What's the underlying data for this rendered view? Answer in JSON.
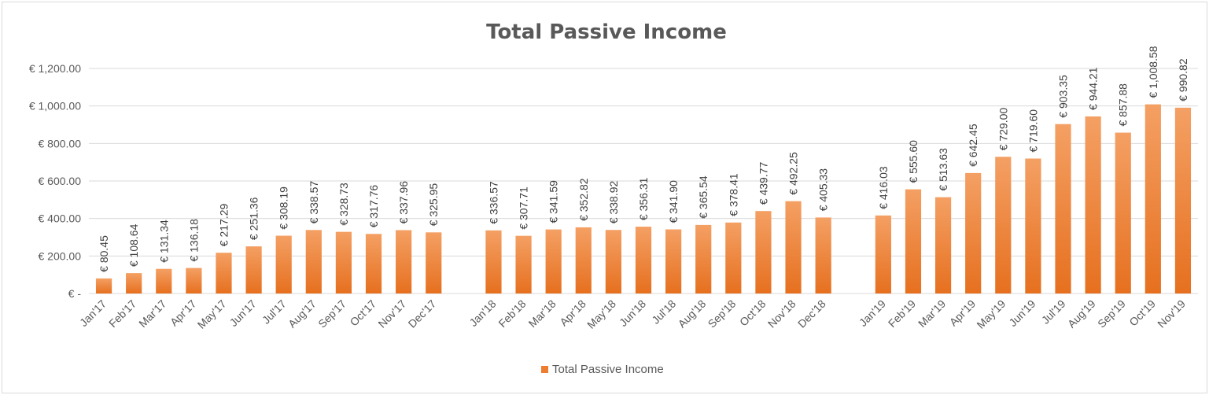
{
  "chart_data": {
    "type": "bar",
    "title": "Total Passive Income",
    "xlabel": "",
    "ylabel": "",
    "ylim": [
      0,
      1200
    ],
    "y_ticks": [
      {
        "value": 1200,
        "label": "€ 1,200.00"
      },
      {
        "value": 1000,
        "label": "€ 1,000.00"
      },
      {
        "value": 800,
        "label": "€ 800.00"
      },
      {
        "value": 600,
        "label": "€ 600.00"
      },
      {
        "value": 400,
        "label": "€ 400.00"
      },
      {
        "value": 200,
        "label": "€ 200.00"
      },
      {
        "value": 0,
        "label": "€ -"
      }
    ],
    "grid": true,
    "legend_position": "bottom",
    "color": "#ED7D31",
    "series": [
      {
        "name": "Total Passive Income",
        "groups": [
          {
            "categories": [
              "Jan'17",
              "Feb'17",
              "Mar'17",
              "Apr'17",
              "May'17",
              "Jun'17",
              "Jul'17",
              "Aug'17",
              "Sep'17",
              "Oct'17",
              "Nov'17",
              "Dec'17"
            ],
            "values": [
              80.45,
              108.64,
              131.34,
              136.18,
              217.29,
              251.36,
              308.19,
              338.57,
              328.73,
              317.76,
              337.96,
              325.95
            ],
            "labels": [
              "€ 80.45",
              "€ 108.64",
              "€ 131.34",
              "€ 136.18",
              "€ 217.29",
              "€ 251.36",
              "€ 308.19",
              "€ 338.57",
              "€ 328.73",
              "€ 317.76",
              "€ 337.96",
              "€ 325.95"
            ]
          },
          {
            "categories": [
              "Jan'18",
              "Feb'18",
              "Mar'18",
              "Apr'18",
              "May'18",
              "Jun'18",
              "Jul'18",
              "Aug'18",
              "Sep'18",
              "Oct'18",
              "Nov'18",
              "Dec'18"
            ],
            "values": [
              336.57,
              307.71,
              341.59,
              352.82,
              338.92,
              356.31,
              341.9,
              365.54,
              378.41,
              439.77,
              492.25,
              405.33
            ],
            "labels": [
              "€ 336.57",
              "€ 307.71",
              "€ 341.59",
              "€ 352.82",
              "€ 338.92",
              "€ 356.31",
              "€ 341.90",
              "€ 365.54",
              "€ 378.41",
              "€ 439.77",
              "€ 492.25",
              "€ 405.33"
            ]
          },
          {
            "categories": [
              "Jan'19",
              "Feb'19",
              "Mar'19",
              "Apr'19",
              "May'19",
              "Jun'19",
              "Jul'19",
              "Aug'19",
              "Sep'19",
              "Oct'19",
              "Nov'19"
            ],
            "values": [
              416.03,
              555.6,
              513.63,
              642.45,
              729.0,
              719.6,
              903.35,
              944.21,
              857.88,
              1008.58,
              990.82
            ],
            "labels": [
              "€ 416.03",
              "€ 555.60",
              "€ 513.63",
              "€ 642.45",
              "€ 729.00",
              "€ 719.60",
              "€ 903.35",
              "€ 944.21",
              "€ 857.88",
              "€ 1,008.58",
              "€ 990.82"
            ]
          }
        ]
      }
    ]
  }
}
